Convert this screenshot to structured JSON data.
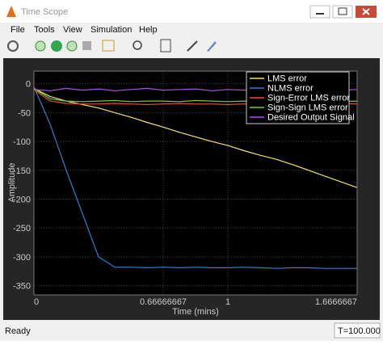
{
  "window": {
    "title": "Time Scope",
    "menu": [
      "File",
      "Tools",
      "View",
      "Simulation",
      "Help"
    ],
    "status": "Ready",
    "time": "T=100.000"
  },
  "chart_data": {
    "type": "line",
    "xlabel": "Time (mins)",
    "ylabel": "Amplitude",
    "x": [
      0,
      0.0833,
      0.1667,
      0.25,
      0.3333,
      0.4167,
      0.5,
      0.5833,
      0.6667,
      0.75,
      0.8333,
      0.9167,
      1,
      1.0833,
      1.1667,
      1.25,
      1.3333,
      1.4167,
      1.5,
      1.5833,
      1.6667
    ],
    "series": [
      {
        "name": "LMS error",
        "color": "#f2e36b",
        "values": [
          -8,
          -22,
          -30,
          -36,
          -42,
          -50,
          -58,
          -67,
          -75,
          -84,
          -92,
          -100,
          -107,
          -116,
          -124,
          -131,
          -140,
          -150,
          -160,
          -170,
          -180
        ]
      },
      {
        "name": "NLMS error",
        "color": "#2f7fd4",
        "values": [
          -5,
          -70,
          -150,
          -225,
          -300,
          -318,
          -318,
          -319,
          -318,
          -319,
          -318,
          -319,
          -319,
          -318,
          -319,
          -320,
          -319,
          -319,
          -320,
          -320,
          -320
        ]
      },
      {
        "name": "Sign-Error LMS error",
        "color": "#e0542a",
        "values": [
          -10,
          -30,
          -34,
          -35,
          -35,
          -34,
          -35,
          -36,
          -35,
          -34,
          -35,
          -35,
          -36,
          -35,
          -34,
          -35,
          -35,
          -36,
          -35,
          -34,
          -35
        ]
      },
      {
        "name": "Sign-Sign LMS error",
        "color": "#6fcf3a",
        "values": [
          -8,
          -26,
          -30,
          -31,
          -30,
          -29,
          -31,
          -30,
          -30,
          -31,
          -29,
          -30,
          -31,
          -30,
          -30,
          -29,
          -31,
          -30,
          -30,
          -31,
          -30
        ]
      },
      {
        "name": "Desired Output Signal",
        "color": "#b14cf5",
        "values": [
          -10,
          -12,
          -8,
          -11,
          -9,
          -12,
          -10,
          -8,
          -11,
          -10,
          -9,
          -12,
          -10,
          -11,
          -8,
          -10,
          -12,
          -9,
          -10,
          -11,
          -10
        ]
      }
    ],
    "xlim": [
      0,
      1.6666667
    ],
    "ylim": [
      -366,
      22
    ],
    "xticks": [
      0,
      0.66666667,
      1,
      1.6666667
    ],
    "yticks": [
      0,
      -50,
      -100,
      -150,
      -200,
      -250,
      -300,
      -350
    ],
    "grid": true,
    "legend": "upper right"
  }
}
